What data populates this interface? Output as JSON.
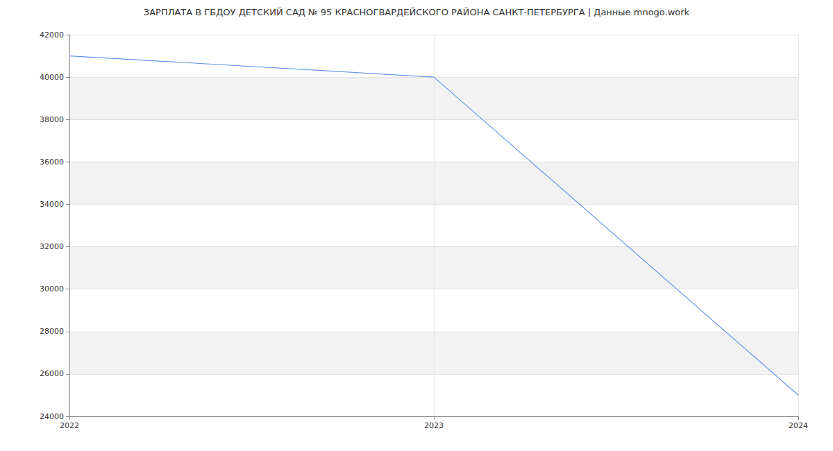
{
  "chart_data": {
    "type": "line",
    "title": "ЗАРПЛАТА В ГБДОУ ДЕТСКИЙ САД № 95 КРАСНОГВАРДЕЙСКОГО РАЙОНА САНКТ-ПЕТЕРБУРГА | Данные mnogo.work",
    "categories": [
      "2022",
      "2023",
      "2024"
    ],
    "values": [
      41000,
      40000,
      25000
    ],
    "color": "#6495ed",
    "marker": "none",
    "ylim": [
      24000,
      42000
    ],
    "yticks": [
      24000,
      26000,
      28000,
      30000,
      32000,
      34000,
      36000,
      38000,
      40000,
      42000
    ],
    "grid": true
  }
}
